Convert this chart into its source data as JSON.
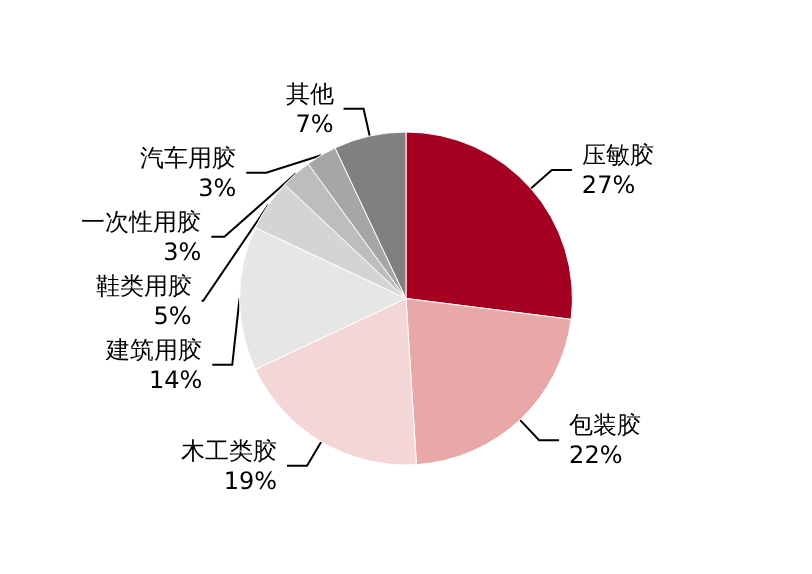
{
  "chart_data": {
    "type": "pie",
    "categories": [
      "压敏胶",
      "包装胶",
      "木工类胶",
      "建筑用胶",
      "鞋类用胶",
      "一次性用胶",
      "汽车用胶",
      "其他"
    ],
    "values": [
      27,
      22,
      19,
      14,
      5,
      3,
      3,
      7
    ],
    "value_labels": [
      "27%",
      "22%",
      "19%",
      "14%",
      "5%",
      "3%",
      "3%",
      "7%"
    ],
    "colors": [
      "#a50021",
      "#e8a8a8",
      "#f4d6d6",
      "#e6e6e6",
      "#d4d4d4",
      "#bdbdbd",
      "#a6a6a6",
      "#808080"
    ],
    "legend": false
  }
}
